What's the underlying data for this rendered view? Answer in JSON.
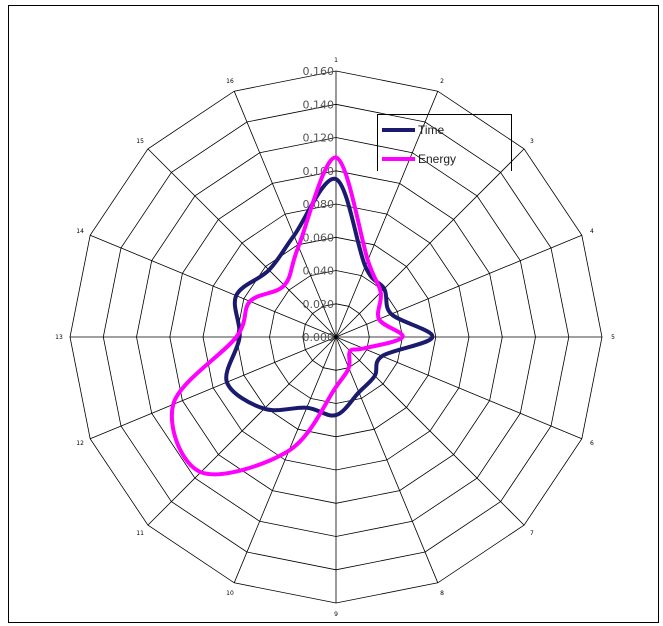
{
  "chart_data": {
    "type": "radar",
    "categories": [
      "1",
      "2",
      "3",
      "4",
      "5",
      "6",
      "7",
      "8",
      "9",
      "10",
      "11",
      "12",
      "13",
      "14",
      "15",
      "16"
    ],
    "radial_ticks": [
      "0.000",
      "0.020",
      "0.040",
      "0.060",
      "0.080",
      "0.100",
      "0.120",
      "0.140",
      "0.160"
    ],
    "rlim": [
      0,
      0.16
    ],
    "grid": true,
    "legend_position": "top-right",
    "series": [
      {
        "name": "Time",
        "color": "#1a1a6e",
        "values": [
          0.095,
          0.046,
          0.041,
          0.036,
          0.058,
          0.03,
          0.033,
          0.036,
          0.047,
          0.046,
          0.061,
          0.071,
          0.058,
          0.065,
          0.057,
          0.066
        ]
      },
      {
        "name": "Energy",
        "color": "#ff00ff",
        "values": [
          0.108,
          0.05,
          0.038,
          0.028,
          0.04,
          0.018,
          0.012,
          0.02,
          0.03,
          0.074,
          0.115,
          0.106,
          0.06,
          0.056,
          0.044,
          0.059
        ]
      }
    ]
  }
}
